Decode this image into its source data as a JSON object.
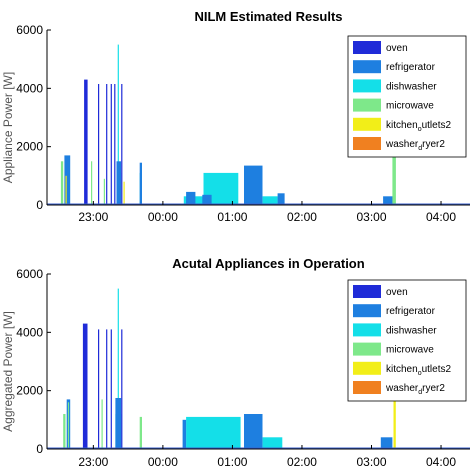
{
  "colors": {
    "oven": "#1f2bd8",
    "refrigerator": "#1e7fe0",
    "dishwasher": "#14dfe8",
    "microwave": "#7ee88a",
    "kitchen_outlets2": "#f2ee18",
    "washer_dryer2": "#f08020",
    "axis": "#000000",
    "baseline": "#3a5fcd"
  },
  "legend": [
    {
      "key": "oven",
      "text": "oven",
      "sub": "",
      "after": ""
    },
    {
      "key": "refrigerator",
      "text": "refrigerator",
      "sub": "",
      "after": ""
    },
    {
      "key": "dishwasher",
      "text": "dishwasher",
      "sub": "",
      "after": ""
    },
    {
      "key": "microwave",
      "text": "microwave",
      "sub": "",
      "after": ""
    },
    {
      "key": "kitchen_outlets2",
      "text": "kitchen",
      "sub": "o",
      "after": "utlets2"
    },
    {
      "key": "washer_dryer2",
      "text": "washer",
      "sub": "d",
      "after": "ryer2"
    }
  ],
  "chart_data": [
    {
      "type": "area",
      "title": "NILM Estimated Results",
      "ylabel": "Appliance Power [W]",
      "xlabel": "",
      "ylim": [
        0,
        6000
      ],
      "yticks": [
        "0",
        "2000",
        "4000",
        "6000"
      ],
      "xlim": [
        "22:20",
        "04:25"
      ],
      "xticks": [
        "23:00",
        "00:00",
        "01:00",
        "02:00",
        "03:00",
        "04:00"
      ],
      "legend_position": "top-right",
      "grid": false,
      "series": [
        {
          "name": "oven",
          "events": [
            {
              "start": "22:52",
              "end": "22:55",
              "value": 4300
            },
            {
              "start": "23:04",
              "end": "23:05",
              "value": 4150
            },
            {
              "start": "23:11",
              "end": "23:12",
              "value": 4150
            },
            {
              "start": "23:15",
              "end": "23:16",
              "value": 4150
            },
            {
              "start": "23:18",
              "end": "23:19",
              "value": 4150
            },
            {
              "start": "23:24",
              "end": "23:25",
              "value": 4150
            }
          ]
        },
        {
          "name": "refrigerator",
          "events": [
            {
              "start": "22:35",
              "end": "22:40",
              "value": 1700
            },
            {
              "start": "23:20",
              "end": "23:24",
              "value": 1500
            },
            {
              "start": "23:40",
              "end": "23:42",
              "value": 1450
            },
            {
              "start": "00:20",
              "end": "00:28",
              "value": 450
            },
            {
              "start": "00:34",
              "end": "00:42",
              "value": 350
            },
            {
              "start": "01:10",
              "end": "01:26",
              "value": 1350
            },
            {
              "start": "01:39",
              "end": "01:45",
              "value": 400
            },
            {
              "start": "03:10",
              "end": "03:20",
              "value": 300
            }
          ]
        },
        {
          "name": "dishwasher",
          "events": [
            {
              "start": "23:20",
              "end": "23:24",
              "value": 1100
            },
            {
              "start": "23:21",
              "end": "23:22",
              "value": 5500
            },
            {
              "start": "23:40",
              "end": "23:42",
              "value": 1100
            },
            {
              "start": "00:18",
              "end": "00:35",
              "value": 300
            },
            {
              "start": "00:35",
              "end": "01:05",
              "value": 1100
            },
            {
              "start": "01:10",
              "end": "01:26",
              "value": 1100
            },
            {
              "start": "01:26",
              "end": "01:39",
              "value": 300
            }
          ]
        },
        {
          "name": "microwave",
          "events": [
            {
              "start": "22:32",
              "end": "22:34",
              "value": 1500
            },
            {
              "start": "22:58",
              "end": "22:59",
              "value": 1500
            },
            {
              "start": "23:09",
              "end": "23:10",
              "value": 900
            },
            {
              "start": "03:18",
              "end": "03:21",
              "value": 1750
            }
          ]
        },
        {
          "name": "kitchen_outlets2",
          "events": [
            {
              "start": "22:36",
              "end": "22:37",
              "value": 1000
            },
            {
              "start": "23:26",
              "end": "23:27",
              "value": 800
            }
          ]
        },
        {
          "name": "washer_dryer2",
          "events": []
        }
      ]
    },
    {
      "type": "area",
      "title": "Acutal Appliances in Operation",
      "ylabel": "Aggregated Power [W]",
      "xlabel": "",
      "ylim": [
        0,
        6000
      ],
      "yticks": [
        "0",
        "2000",
        "4000",
        "6000"
      ],
      "xlim": [
        "22:20",
        "04:25"
      ],
      "xticks": [
        "23:00",
        "00:00",
        "01:00",
        "02:00",
        "03:00",
        "04:00"
      ],
      "legend_position": "top-right",
      "grid": false,
      "series": [
        {
          "name": "oven",
          "events": [
            {
              "start": "22:51",
              "end": "22:55",
              "value": 4300
            },
            {
              "start": "23:04",
              "end": "23:05",
              "value": 4100
            },
            {
              "start": "23:11",
              "end": "23:12",
              "value": 4100
            },
            {
              "start": "23:15",
              "end": "23:16",
              "value": 4100
            },
            {
              "start": "23:24",
              "end": "23:25",
              "value": 4100
            }
          ]
        },
        {
          "name": "refrigerator",
          "events": [
            {
              "start": "22:37",
              "end": "22:40",
              "value": 1700
            },
            {
              "start": "23:19",
              "end": "23:24",
              "value": 1750
            },
            {
              "start": "00:17",
              "end": "00:20",
              "value": 1000
            },
            {
              "start": "01:10",
              "end": "01:26",
              "value": 1200
            },
            {
              "start": "03:08",
              "end": "03:18",
              "value": 400
            }
          ]
        },
        {
          "name": "dishwasher",
          "events": [
            {
              "start": "23:19",
              "end": "23:24",
              "value": 1200
            },
            {
              "start": "23:21",
              "end": "23:22",
              "value": 5500
            },
            {
              "start": "00:20",
              "end": "01:07",
              "value": 1100
            },
            {
              "start": "01:10",
              "end": "01:26",
              "value": 1100
            },
            {
              "start": "01:26",
              "end": "01:43",
              "value": 400
            }
          ]
        },
        {
          "name": "microwave",
          "events": [
            {
              "start": "22:34",
              "end": "22:36",
              "value": 1200
            },
            {
              "start": "22:38",
              "end": "22:39",
              "value": 1600
            },
            {
              "start": "23:07",
              "end": "23:08",
              "value": 1700
            },
            {
              "start": "23:40",
              "end": "23:42",
              "value": 1100
            }
          ]
        },
        {
          "name": "kitchen_outlets2",
          "events": [
            {
              "start": "03:19",
              "end": "03:21",
              "value": 1700
            }
          ]
        },
        {
          "name": "washer_dryer2",
          "events": []
        }
      ]
    }
  ]
}
